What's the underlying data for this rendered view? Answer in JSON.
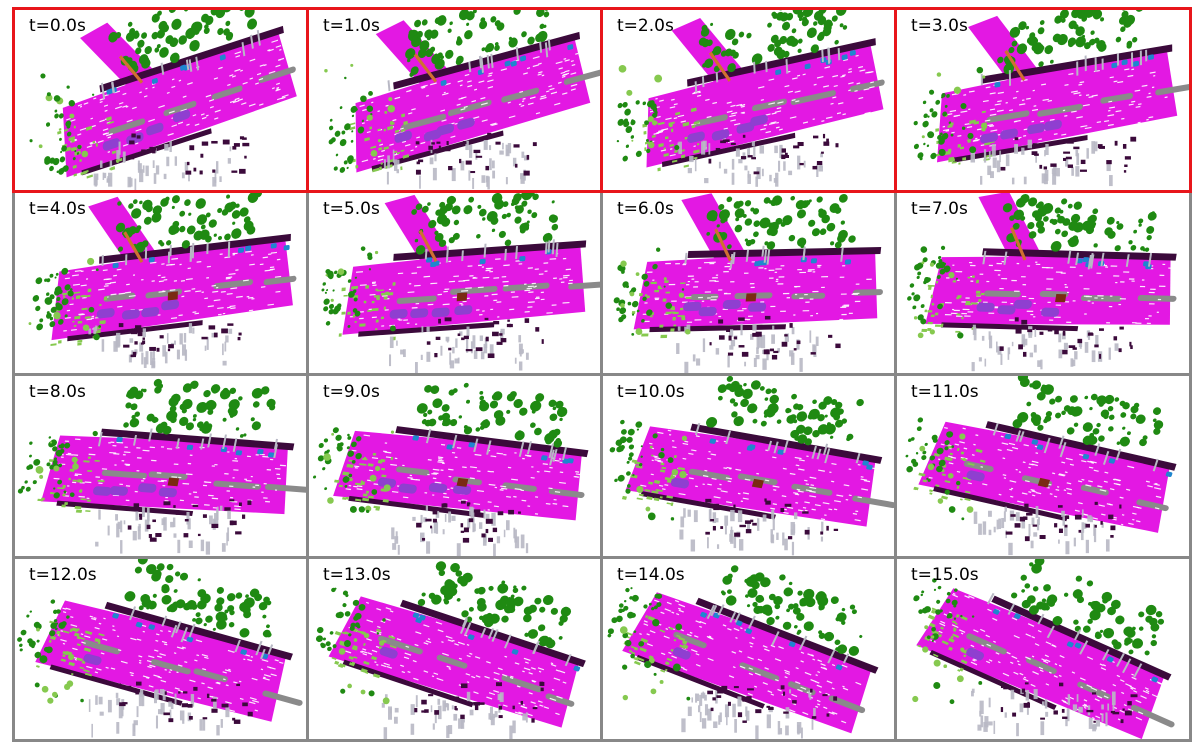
{
  "colors": {
    "road": "#e318e3",
    "vegetation": "#1f8a12",
    "terrain": "#86c94f",
    "sidewalk": "#3b0a3b",
    "car": "#1f86cf",
    "pole": "#b8b8c4",
    "truck": "#8f3fd0",
    "marking": "#8a8a8a",
    "other_vehicle": "#7a2a12",
    "fence": "#d07030",
    "highlight_border": "#e8161b",
    "default_border": "#888888"
  },
  "frames": [
    {
      "label": "t=0.0s",
      "highlighted": true
    },
    {
      "label": "t=1.0s",
      "highlighted": true
    },
    {
      "label": "t=2.0s",
      "highlighted": true
    },
    {
      "label": "t=3.0s",
      "highlighted": true
    },
    {
      "label": "t=4.0s",
      "highlighted": false
    },
    {
      "label": "t=5.0s",
      "highlighted": false
    },
    {
      "label": "t=6.0s",
      "highlighted": false
    },
    {
      "label": "t=7.0s",
      "highlighted": false
    },
    {
      "label": "t=8.0s",
      "highlighted": false
    },
    {
      "label": "t=9.0s",
      "highlighted": false
    },
    {
      "label": "t=10.0s",
      "highlighted": false
    },
    {
      "label": "t=11.0s",
      "highlighted": false
    },
    {
      "label": "t=12.0s",
      "highlighted": false
    },
    {
      "label": "t=13.0s",
      "highlighted": false
    },
    {
      "label": "t=14.0s",
      "highlighted": false
    },
    {
      "label": "t=15.0s",
      "highlighted": false
    }
  ]
}
